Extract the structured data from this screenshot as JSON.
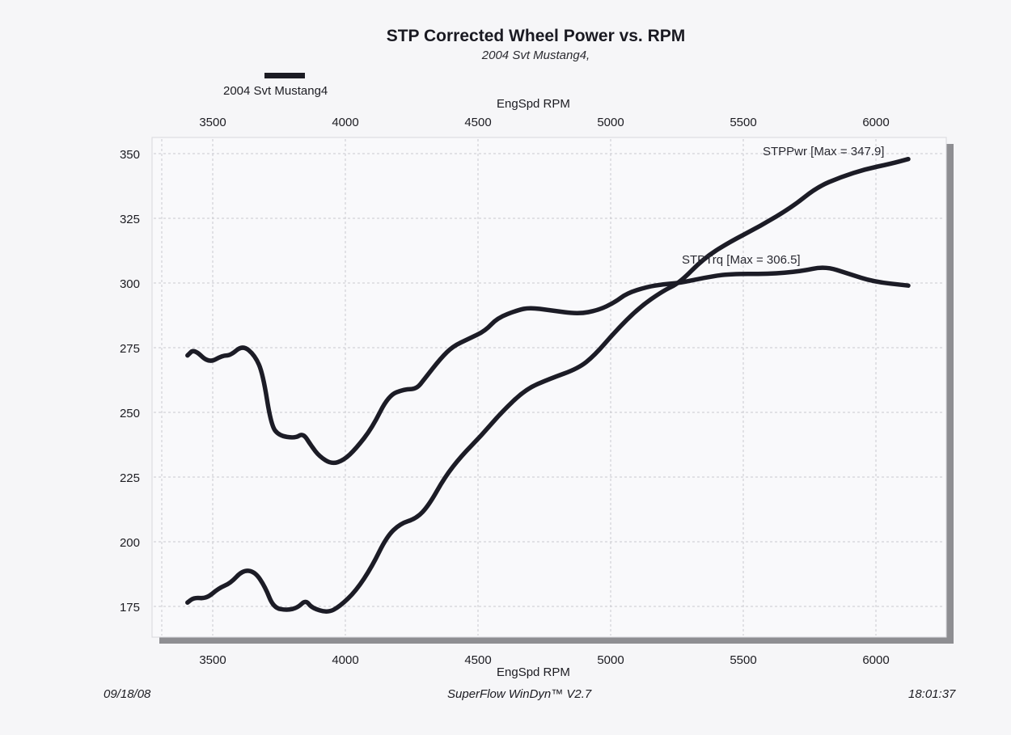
{
  "chart_data": {
    "type": "line",
    "title": "STP Corrected Wheel Power vs. RPM",
    "subtitle": "2004 Svt Mustang4,",
    "legend": {
      "entries": [
        "2004 Svt Mustang4"
      ],
      "placement": "top-left"
    },
    "xlabel_top": "EngSpd  RPM",
    "xlabel": "EngSpd  RPM",
    "ylabel": "",
    "xlim": [
      3400,
      6150
    ],
    "ylim": [
      170,
      355
    ],
    "x_ticks": [
      "3500",
      "4000",
      "4500",
      "5000",
      "5500",
      "6000"
    ],
    "x_tick_values": [
      3500,
      4000,
      4500,
      5000,
      5500,
      6000
    ],
    "y_ticks": [
      "350",
      "325",
      "300",
      "275",
      "250",
      "225",
      "200",
      "175"
    ],
    "y_tick_values": [
      350,
      325,
      300,
      275,
      250,
      225,
      200,
      175
    ],
    "grid": true,
    "series": [
      {
        "name": "STPTrq",
        "annotation": "STPTrq [Max = 306.5]",
        "x": [
          3405,
          3430,
          3485,
          3537,
          3567,
          3613,
          3659,
          3689,
          3720,
          3750,
          3811,
          3841,
          3872,
          3902,
          3948,
          3994,
          4040,
          4101,
          4162,
          4223,
          4268,
          4299,
          4360,
          4405,
          4466,
          4527,
          4573,
          4649,
          4695,
          4771,
          4878,
          4954,
          5015,
          5061,
          5137,
          5198,
          5259,
          5351,
          5442,
          5595,
          5716,
          5808,
          5899,
          5991,
          6122
        ],
        "values": [
          272,
          274.5,
          269,
          272,
          272,
          276,
          272,
          265,
          245,
          241,
          240,
          242,
          237,
          233,
          230,
          231.5,
          236,
          244,
          256.5,
          259,
          259,
          263,
          271,
          275.5,
          278.5,
          281.5,
          286.5,
          289.5,
          290.5,
          289.5,
          288,
          289.5,
          292.5,
          296,
          298.5,
          299.5,
          300,
          302,
          303.5,
          303.5,
          304.5,
          306.5,
          303.5,
          300.5,
          299
        ]
      },
      {
        "name": "STPPwr",
        "annotation": "STPPwr [Max = 347.9]",
        "x": [
          3405,
          3430,
          3476,
          3522,
          3567,
          3613,
          3659,
          3698,
          3729,
          3780,
          3820,
          3851,
          3872,
          3933,
          3979,
          4040,
          4101,
          4156,
          4207,
          4268,
          4314,
          4375,
          4436,
          4512,
          4588,
          4680,
          4771,
          4878,
          4939,
          5015,
          5107,
          5198,
          5259,
          5351,
          5442,
          5564,
          5686,
          5777,
          5869,
          5960,
          6052,
          6122
        ],
        "values": [
          176.5,
          178.5,
          178,
          182,
          184,
          189,
          188.5,
          182.5,
          174.5,
          173.5,
          174.5,
          177.5,
          174.5,
          172.5,
          175,
          181,
          190.5,
          202,
          207,
          209,
          214,
          225,
          233,
          241,
          250,
          259,
          263,
          267,
          272,
          281,
          290.5,
          297,
          300,
          309.5,
          315.5,
          322,
          329.5,
          337,
          341,
          344,
          346,
          347.9
        ]
      }
    ],
    "footer": {
      "date": "09/18/08",
      "software": "SuperFlow WinDyn™ V2.7",
      "time": "18:01:37"
    },
    "colors": {
      "line": "#1c1c26",
      "shadow": "#8e8e92",
      "grid": "#c9c9cf",
      "plot_bg": "#f9f9fb"
    }
  }
}
